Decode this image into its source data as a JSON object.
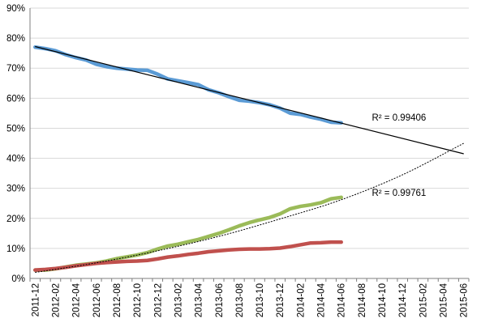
{
  "chart_data": {
    "type": "line",
    "title": "",
    "xlabel": "",
    "ylabel": "",
    "x_ticks": [
      "2011-12",
      "2012-02",
      "2012-04",
      "2012-06",
      "2012-08",
      "2012-10",
      "2012-12",
      "2013-02",
      "2013-04",
      "2013-06",
      "2013-08",
      "2013-10",
      "2013-12",
      "2014-02",
      "2014-04",
      "2014-06",
      "2014-08",
      "2014-10",
      "2014-12",
      "2015-02",
      "2015-04",
      "2015-06"
    ],
    "y_ticks": [
      "0%",
      "10%",
      "20%",
      "30%",
      "40%",
      "50%",
      "60%",
      "70%",
      "80%",
      "90%"
    ],
    "ylim": [
      0,
      0.9
    ],
    "grid": "horizontal",
    "legend": "none",
    "series": [
      {
        "color": "#5b9bd5",
        "x": [
          "2011-12",
          "2012-01",
          "2012-02",
          "2012-03",
          "2012-04",
          "2012-05",
          "2012-06",
          "2012-07",
          "2012-08",
          "2012-09",
          "2012-10",
          "2012-11",
          "2012-12",
          "2013-01",
          "2013-02",
          "2013-03",
          "2013-04",
          "2013-05",
          "2013-06",
          "2013-07",
          "2013-08",
          "2013-09",
          "2013-10",
          "2013-11",
          "2013-12",
          "2014-01",
          "2014-02",
          "2014-03",
          "2014-04",
          "2014-05",
          "2014-06"
        ],
        "values": [
          0.77,
          0.765,
          0.758,
          0.745,
          0.735,
          0.727,
          0.713,
          0.705,
          0.7,
          0.697,
          0.694,
          0.693,
          0.68,
          0.664,
          0.658,
          0.652,
          0.645,
          0.628,
          0.618,
          0.605,
          0.593,
          0.59,
          0.585,
          0.578,
          0.567,
          0.55,
          0.546,
          0.537,
          0.53,
          0.52,
          0.518
        ]
      },
      {
        "color": "#9bbb59",
        "x": [
          "2011-12",
          "2012-01",
          "2012-02",
          "2012-03",
          "2012-04",
          "2012-05",
          "2012-06",
          "2012-07",
          "2012-08",
          "2012-09",
          "2012-10",
          "2012-11",
          "2012-12",
          "2013-01",
          "2013-02",
          "2013-03",
          "2013-04",
          "2013-05",
          "2013-06",
          "2013-07",
          "2013-08",
          "2013-09",
          "2013-10",
          "2013-11",
          "2013-12",
          "2014-01",
          "2014-02",
          "2014-03",
          "2014-04",
          "2014-05",
          "2014-06"
        ],
        "values": [
          0.028,
          0.028,
          0.032,
          0.038,
          0.044,
          0.048,
          0.052,
          0.058,
          0.066,
          0.072,
          0.078,
          0.086,
          0.098,
          0.108,
          0.114,
          0.122,
          0.13,
          0.14,
          0.15,
          0.162,
          0.175,
          0.186,
          0.195,
          0.203,
          0.215,
          0.232,
          0.24,
          0.245,
          0.252,
          0.265,
          0.27
        ]
      },
      {
        "color": "#c0504d",
        "x": [
          "2011-12",
          "2012-01",
          "2012-02",
          "2012-03",
          "2012-04",
          "2012-05",
          "2012-06",
          "2012-07",
          "2012-08",
          "2012-09",
          "2012-10",
          "2012-11",
          "2012-12",
          "2013-01",
          "2013-02",
          "2013-03",
          "2013-04",
          "2013-05",
          "2013-06",
          "2013-07",
          "2013-08",
          "2013-09",
          "2013-10",
          "2013-11",
          "2013-12",
          "2014-01",
          "2014-02",
          "2014-03",
          "2014-04",
          "2014-05",
          "2014-06"
        ],
        "values": [
          0.028,
          0.03,
          0.033,
          0.037,
          0.042,
          0.046,
          0.05,
          0.053,
          0.055,
          0.057,
          0.058,
          0.06,
          0.065,
          0.071,
          0.075,
          0.08,
          0.084,
          0.089,
          0.092,
          0.095,
          0.097,
          0.098,
          0.098,
          0.099,
          0.101,
          0.106,
          0.112,
          0.118,
          0.119,
          0.121,
          0.121
        ]
      }
    ],
    "trendlines": [
      {
        "kind": "linear",
        "color": "#000000",
        "x": [
          "2011-12",
          "2015-06"
        ],
        "values": [
          0.772,
          0.415
        ]
      },
      {
        "kind": "polynomial",
        "color": "#000000",
        "x": [
          "2011-12",
          "2012-06",
          "2012-12",
          "2013-06",
          "2013-12",
          "2014-06",
          "2014-12",
          "2015-06"
        ],
        "values": [
          0.02,
          0.052,
          0.092,
          0.14,
          0.198,
          0.262,
          0.345,
          0.45
        ]
      }
    ],
    "annotations": [
      {
        "text": "R² = 0.99406",
        "x": "2014-09",
        "y": 0.525
      },
      {
        "text": "R² = 0.99761",
        "x": "2014-09",
        "y": 0.275
      }
    ]
  }
}
